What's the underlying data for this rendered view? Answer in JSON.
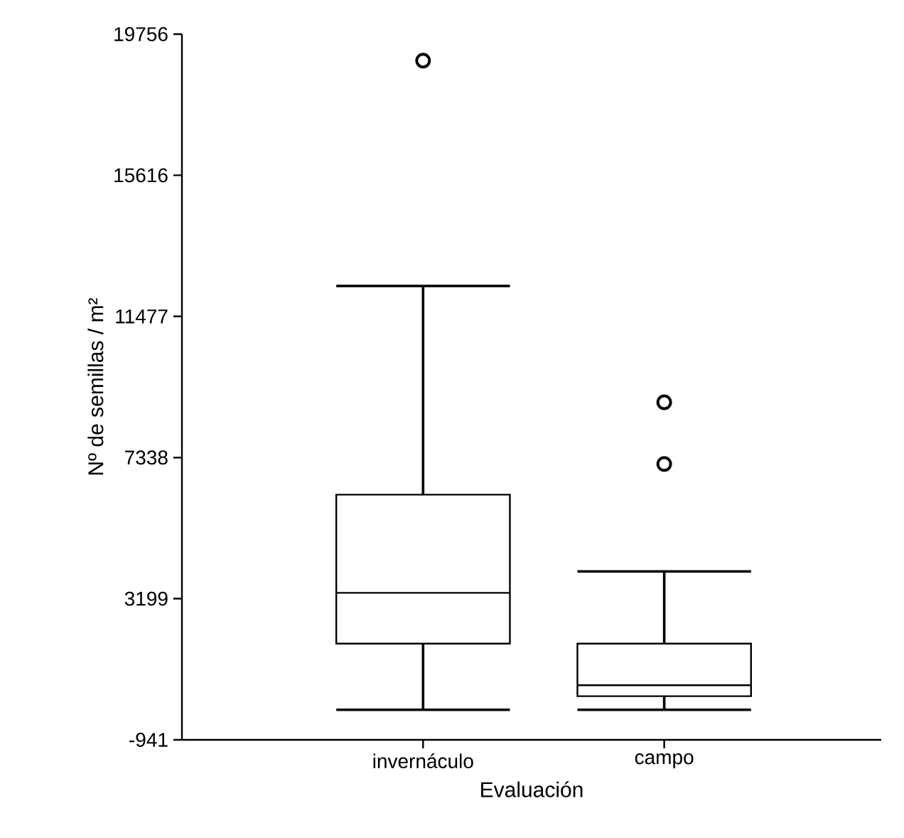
{
  "chart_data": {
    "type": "box",
    "xlabel": "Evaluación",
    "ylabel": "Nº de semillas / m²",
    "categories": [
      "invernáculo",
      "campo"
    ],
    "boxes": [
      {
        "low": -60,
        "q1": 1880,
        "median": 3370,
        "q3": 6250,
        "high": 12370,
        "outliers": [
          18980
        ]
      },
      {
        "low": -60,
        "q1": 340,
        "median": 660,
        "q3": 1880,
        "high": 4000,
        "outliers": [
          7150,
          8960
        ]
      }
    ],
    "color": "#000000",
    "ylim": [
      -941,
      19756
    ],
    "yticks": [
      -941,
      3199,
      7338,
      11477,
      15616,
      19756
    ]
  }
}
